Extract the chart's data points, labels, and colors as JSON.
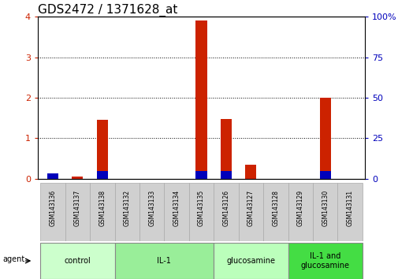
{
  "title": "GDS2472 / 1371628_at",
  "samples": [
    "GSM143136",
    "GSM143137",
    "GSM143138",
    "GSM143132",
    "GSM143133",
    "GSM143134",
    "GSM143135",
    "GSM143126",
    "GSM143127",
    "GSM143128",
    "GSM143129",
    "GSM143130",
    "GSM143131"
  ],
  "red_values": [
    0.07,
    0.05,
    1.45,
    0.0,
    0.0,
    0.0,
    3.9,
    1.47,
    0.35,
    0.0,
    0.0,
    2.0,
    0.0
  ],
  "blue_values_pct": [
    3.0,
    0.0,
    4.5,
    0.0,
    0.0,
    0.0,
    4.5,
    4.5,
    0.0,
    0.0,
    0.0,
    4.5,
    0.0
  ],
  "groups": [
    {
      "label": "control",
      "start": 0,
      "end": 3,
      "color": "#ccffcc"
    },
    {
      "label": "IL-1",
      "start": 3,
      "end": 7,
      "color": "#99ee99"
    },
    {
      "label": "glucosamine",
      "start": 7,
      "end": 10,
      "color": "#bbffbb"
    },
    {
      "label": "IL-1 and\nglucosamine",
      "start": 10,
      "end": 13,
      "color": "#44dd44"
    }
  ],
  "ylim_left": [
    0,
    4
  ],
  "ylim_right": [
    0,
    100
  ],
  "yticks_left": [
    0,
    1,
    2,
    3,
    4
  ],
  "yticks_right": [
    0,
    25,
    50,
    75,
    100
  ],
  "red_color": "#cc2200",
  "blue_color": "#0000bb",
  "bar_bg_color": "#d0d0d0",
  "title_fontsize": 11,
  "agent_label": "agent"
}
